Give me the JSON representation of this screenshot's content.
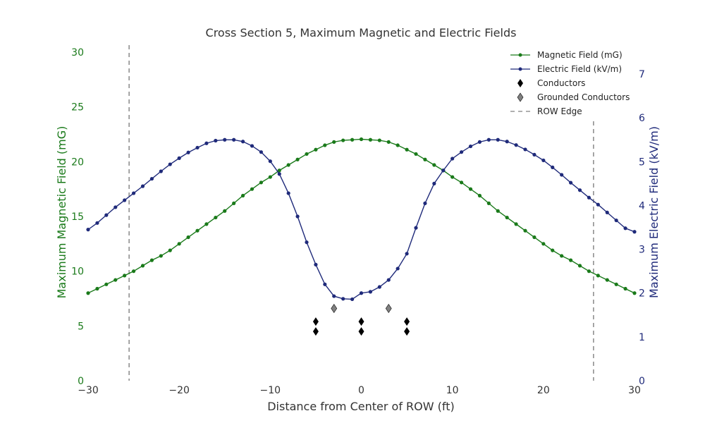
{
  "chart_data": {
    "type": "line",
    "title": "Cross Section 5, Maximum Magnetic and Electric Fields",
    "xlabel": "Distance from Center of ROW (ft)",
    "ylabel_left": "Maximum Magnetic Field (mG)",
    "ylabel_right": "Maximum Electric Field (kV/m)",
    "xlim": [
      -30,
      30
    ],
    "ylim_left": [
      0,
      30
    ],
    "ylim_right": [
      0,
      7.5
    ],
    "xticks": [
      "−30",
      "−20",
      "−10",
      "0",
      "10",
      "20",
      "30"
    ],
    "yticks_left": [
      "0",
      "5",
      "10",
      "15",
      "20",
      "25",
      "30"
    ],
    "yticks_right": [
      "0",
      "1",
      "2",
      "3",
      "4",
      "5",
      "6",
      "7"
    ],
    "grid": false,
    "legend_position": "top-right",
    "colors": {
      "magnetic": "#1a7a1a",
      "electric": "#1f2a7a",
      "conductor": "#000000",
      "grounded": "#808080",
      "row_edge": "#808080",
      "left_axis_text": "#1a7a1a",
      "right_axis_text": "#1f2a7a"
    },
    "series": [
      {
        "name": "Magnetic Field (mG)",
        "axis": "left",
        "x": [
          -30,
          -29,
          -28,
          -27,
          -26,
          -25,
          -24,
          -23,
          -22,
          -21,
          -20,
          -19,
          -18,
          -17,
          -16,
          -15,
          -14,
          -13,
          -12,
          -11,
          -10,
          -9,
          -8,
          -7,
          -6,
          -5,
          -4,
          -3,
          -2,
          -1,
          0,
          1,
          2,
          3,
          4,
          5,
          6,
          7,
          8,
          9,
          10,
          11,
          12,
          13,
          14,
          15,
          16,
          17,
          18,
          19,
          20,
          21,
          22,
          23,
          24,
          25,
          26,
          27,
          28,
          29,
          30
        ],
        "y": [
          8.0,
          8.4,
          8.8,
          9.2,
          9.6,
          10.0,
          10.5,
          11.0,
          11.4,
          11.9,
          12.5,
          13.1,
          13.7,
          14.3,
          14.9,
          15.5,
          16.2,
          16.9,
          17.5,
          18.1,
          18.6,
          19.2,
          19.7,
          20.2,
          20.7,
          21.1,
          21.5,
          21.8,
          21.95,
          22.0,
          22.05,
          22.0,
          21.95,
          21.8,
          21.5,
          21.1,
          20.7,
          20.2,
          19.7,
          19.2,
          18.6,
          18.1,
          17.5,
          16.9,
          16.2,
          15.5,
          14.9,
          14.3,
          13.7,
          13.1,
          12.5,
          11.9,
          11.4,
          11.0,
          10.5,
          10.0,
          9.6,
          9.2,
          8.8,
          8.4,
          8.0
        ]
      },
      {
        "name": "Electric Field (kV/m)",
        "axis": "right",
        "x": [
          -30,
          -29,
          -28,
          -27,
          -26,
          -25,
          -24,
          -23,
          -22,
          -21,
          -20,
          -19,
          -18,
          -17,
          -16,
          -15,
          -14,
          -13,
          -12,
          -11,
          -10,
          -9,
          -8,
          -7,
          -6,
          -5,
          -4,
          -3,
          -2,
          -1,
          0,
          1,
          2,
          3,
          4,
          5,
          6,
          7,
          8,
          9,
          10,
          11,
          12,
          13,
          14,
          15,
          16,
          17,
          18,
          19,
          20,
          21,
          22,
          23,
          24,
          25,
          26,
          27,
          28,
          29,
          30
        ],
        "y": [
          3.45,
          3.6,
          3.78,
          3.96,
          4.12,
          4.28,
          4.44,
          4.61,
          4.78,
          4.94,
          5.08,
          5.21,
          5.32,
          5.42,
          5.48,
          5.5,
          5.5,
          5.46,
          5.36,
          5.22,
          5.01,
          4.72,
          4.28,
          3.75,
          3.16,
          2.65,
          2.2,
          1.93,
          1.87,
          1.86,
          2.0,
          2.03,
          2.14,
          2.3,
          2.56,
          2.9,
          3.49,
          4.05,
          4.5,
          4.8,
          5.07,
          5.22,
          5.35,
          5.45,
          5.5,
          5.5,
          5.46,
          5.38,
          5.28,
          5.16,
          5.03,
          4.87,
          4.7,
          4.52,
          4.35,
          4.18,
          4.02,
          3.84,
          3.66,
          3.48,
          3.4
        ]
      }
    ],
    "conductors": {
      "name": "Conductors",
      "points": [
        {
          "x": -5,
          "y": 5.4
        },
        {
          "x": -5,
          "y": 4.5
        },
        {
          "x": 0,
          "y": 5.4
        },
        {
          "x": 0,
          "y": 4.5
        },
        {
          "x": 5,
          "y": 5.4
        },
        {
          "x": 5,
          "y": 4.5
        }
      ]
    },
    "grounded_conductors": {
      "name": "Grounded Conductors",
      "points": [
        {
          "x": -3,
          "y": 6.6
        },
        {
          "x": 3,
          "y": 6.6
        }
      ]
    },
    "row_edges": {
      "name": "ROW Edge",
      "x": [
        -25.5,
        25.5
      ]
    }
  }
}
